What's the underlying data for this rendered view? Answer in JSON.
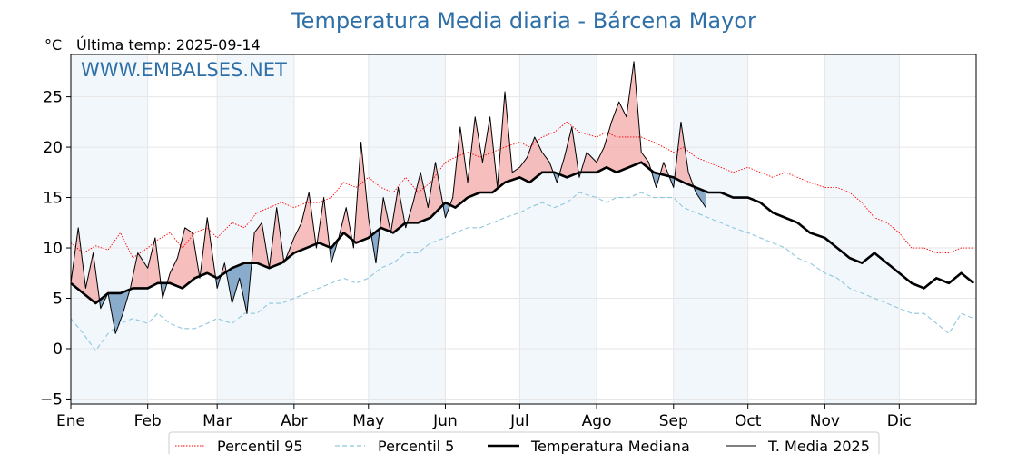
{
  "chart_data": {
    "type": "line",
    "title": "Temperatura Media diaria - Bárcena Mayor",
    "unit_label": "°C",
    "subtitle": "Última temp: 2025-09-14",
    "watermark": "WWW.EMBALSES.NET",
    "xlabel": "",
    "ylabel": "",
    "ylim": [
      -5.5,
      29.2
    ],
    "xlim": [
      0,
      365
    ],
    "y_ticks": [
      -5,
      0,
      5,
      10,
      15,
      20,
      25
    ],
    "grid": true,
    "legend_position": "bottom",
    "months": [
      {
        "label": "Ene",
        "start_day": 0
      },
      {
        "label": "Feb",
        "start_day": 31
      },
      {
        "label": "Mar",
        "start_day": 59
      },
      {
        "label": "Abr",
        "start_day": 90
      },
      {
        "label": "May",
        "start_day": 120
      },
      {
        "label": "Jun",
        "start_day": 151
      },
      {
        "label": "Jul",
        "start_day": 181
      },
      {
        "label": "Ago",
        "start_day": 212
      },
      {
        "label": "Sep",
        "start_day": 243
      },
      {
        "label": "Oct",
        "start_day": 273
      },
      {
        "label": "Nov",
        "start_day": 304
      },
      {
        "label": "Dic",
        "start_day": 334
      }
    ],
    "series": [
      {
        "name": "Percentil 95",
        "color": "#ff0000",
        "style": "dotted",
        "x": [
          0,
          5,
          10,
          15,
          20,
          25,
          31,
          35,
          40,
          45,
          50,
          55,
          59,
          65,
          70,
          75,
          80,
          85,
          90,
          95,
          100,
          105,
          110,
          115,
          120,
          125,
          130,
          135,
          140,
          145,
          151,
          155,
          160,
          165,
          170,
          175,
          181,
          185,
          190,
          195,
          200,
          205,
          212,
          216,
          220,
          225,
          230,
          235,
          243,
          247,
          252,
          257,
          262,
          267,
          273,
          278,
          283,
          288,
          293,
          298,
          304,
          309,
          314,
          319,
          324,
          329,
          334,
          339,
          344,
          349,
          354,
          359,
          364
        ],
        "y": [
          10.5,
          9.5,
          10.2,
          9.8,
          11.5,
          9.0,
          10.0,
          10.8,
          11.5,
          10.0,
          11.5,
          12.0,
          11.0,
          12.5,
          12.0,
          13.5,
          14.0,
          14.5,
          14.0,
          14.5,
          14.5,
          15.0,
          16.5,
          16.0,
          17.0,
          16.0,
          15.5,
          17.0,
          15.5,
          16.5,
          18.5,
          19.0,
          19.5,
          19.0,
          19.5,
          20.0,
          20.5,
          20.0,
          21.0,
          21.5,
          22.5,
          21.5,
          21.0,
          21.5,
          21.0,
          21.0,
          21.0,
          20.5,
          19.5,
          20.0,
          19.0,
          18.5,
          18.0,
          17.5,
          18.0,
          17.5,
          17.0,
          17.5,
          17.0,
          16.5,
          16.0,
          16.0,
          15.5,
          14.5,
          13.0,
          12.5,
          11.5,
          10.0,
          10.0,
          9.5,
          9.5,
          10.0,
          10.0
        ]
      },
      {
        "name": "Percentil 5",
        "color": "#8fc7dc",
        "style": "dashed",
        "x": [
          0,
          5,
          10,
          15,
          20,
          25,
          31,
          35,
          40,
          45,
          50,
          55,
          59,
          65,
          70,
          75,
          80,
          85,
          90,
          95,
          100,
          105,
          110,
          115,
          120,
          125,
          130,
          135,
          140,
          145,
          151,
          155,
          160,
          165,
          170,
          175,
          181,
          185,
          190,
          195,
          200,
          205,
          212,
          216,
          220,
          225,
          230,
          235,
          243,
          247,
          252,
          257,
          262,
          267,
          273,
          278,
          283,
          288,
          293,
          298,
          304,
          309,
          314,
          319,
          324,
          329,
          334,
          339,
          344,
          349,
          354,
          359,
          364
        ],
        "y": [
          3.0,
          1.5,
          -0.2,
          1.5,
          2.5,
          3.0,
          2.5,
          3.5,
          2.5,
          2.0,
          2.0,
          2.5,
          3.0,
          2.5,
          3.5,
          3.5,
          4.5,
          4.5,
          5.0,
          5.5,
          6.0,
          6.5,
          7.0,
          6.5,
          7.0,
          8.0,
          8.5,
          9.5,
          9.5,
          10.5,
          11.0,
          11.5,
          12.0,
          12.0,
          12.5,
          13.0,
          13.5,
          14.0,
          14.5,
          14.0,
          14.5,
          15.5,
          15.0,
          14.5,
          15.0,
          15.0,
          15.5,
          15.0,
          15.0,
          14.0,
          13.5,
          13.0,
          12.5,
          12.0,
          11.5,
          11.0,
          10.5,
          10.0,
          9.0,
          8.5,
          7.5,
          7.0,
          6.0,
          5.5,
          5.0,
          4.5,
          4.0,
          3.5,
          3.5,
          2.5,
          1.5,
          3.5,
          3.0
        ]
      },
      {
        "name": "Temperatura Mediana",
        "color": "#000000",
        "style": "thick",
        "x": [
          0,
          5,
          10,
          15,
          20,
          25,
          31,
          35,
          40,
          45,
          50,
          55,
          59,
          65,
          70,
          75,
          80,
          85,
          90,
          95,
          100,
          105,
          110,
          115,
          120,
          125,
          130,
          135,
          140,
          145,
          151,
          155,
          160,
          165,
          170,
          175,
          181,
          185,
          190,
          195,
          200,
          205,
          212,
          216,
          220,
          225,
          230,
          235,
          243,
          247,
          252,
          257,
          262,
          267,
          273,
          278,
          283,
          288,
          293,
          298,
          304,
          309,
          314,
          319,
          324,
          329,
          334,
          339,
          344,
          349,
          354,
          359,
          364
        ],
        "y": [
          6.5,
          5.5,
          4.5,
          5.5,
          5.5,
          6.0,
          6.0,
          6.5,
          6.5,
          6.0,
          7.0,
          7.5,
          7.0,
          8.0,
          8.5,
          8.5,
          8.0,
          8.5,
          9.5,
          10.0,
          10.5,
          10.0,
          11.5,
          10.5,
          11.0,
          12.0,
          11.5,
          12.5,
          12.5,
          13.0,
          14.5,
          14.0,
          15.0,
          15.5,
          15.5,
          16.5,
          17.0,
          16.5,
          17.5,
          17.5,
          17.0,
          17.5,
          17.5,
          18.0,
          17.5,
          18.0,
          18.5,
          17.5,
          17.0,
          16.5,
          16.0,
          15.5,
          15.5,
          15.0,
          15.0,
          14.5,
          13.5,
          13.0,
          12.5,
          11.5,
          11.0,
          10.0,
          9.0,
          8.5,
          9.5,
          8.5,
          7.5,
          6.5,
          6.0,
          7.0,
          6.5,
          7.5,
          6.5
        ]
      },
      {
        "name": "T. Media 2025",
        "color": "#000000",
        "style": "solid",
        "x": [
          0,
          3,
          6,
          9,
          12,
          15,
          18,
          21,
          24,
          27,
          31,
          34,
          37,
          40,
          43,
          46,
          49,
          52,
          55,
          59,
          62,
          65,
          68,
          71,
          74,
          77,
          80,
          83,
          86,
          90,
          93,
          96,
          99,
          102,
          105,
          108,
          111,
          114,
          117,
          120,
          123,
          126,
          129,
          132,
          135,
          138,
          141,
          144,
          147,
          151,
          154,
          157,
          160,
          163,
          166,
          169,
          172,
          175,
          178,
          181,
          184,
          187,
          190,
          193,
          196,
          199,
          202,
          205,
          208,
          212,
          215,
          218,
          221,
          224,
          227,
          230,
          233,
          236,
          239,
          243,
          246,
          249,
          252,
          256
        ],
        "y": [
          6.5,
          12.0,
          6.0,
          9.5,
          4.0,
          5.5,
          1.5,
          3.5,
          6.0,
          9.5,
          8.0,
          11.0,
          5.0,
          7.5,
          9.0,
          12.0,
          11.5,
          7.0,
          13.0,
          6.0,
          8.5,
          4.5,
          7.0,
          3.5,
          11.5,
          12.5,
          8.0,
          14.0,
          8.5,
          11.0,
          12.5,
          15.5,
          10.0,
          15.0,
          8.5,
          11.0,
          14.0,
          10.0,
          20.5,
          13.0,
          8.5,
          15.0,
          11.5,
          16.0,
          12.0,
          14.5,
          17.5,
          14.0,
          18.5,
          13.0,
          15.0,
          22.0,
          16.5,
          23.0,
          18.5,
          23.0,
          16.0,
          25.5,
          17.5,
          18.0,
          19.0,
          21.0,
          19.5,
          18.5,
          16.5,
          19.0,
          22.0,
          17.0,
          19.5,
          18.5,
          20.0,
          22.5,
          24.5,
          23.0,
          28.5,
          19.5,
          18.5,
          16.0,
          18.5,
          16.0,
          22.5,
          17.5,
          15.5,
          14.0
        ]
      }
    ]
  },
  "legend": {
    "items": [
      {
        "label": "Percentil 95"
      },
      {
        "label": "Percentil 5"
      },
      {
        "label": "Temperatura Mediana"
      },
      {
        "label": "T. Media 2025"
      }
    ]
  }
}
